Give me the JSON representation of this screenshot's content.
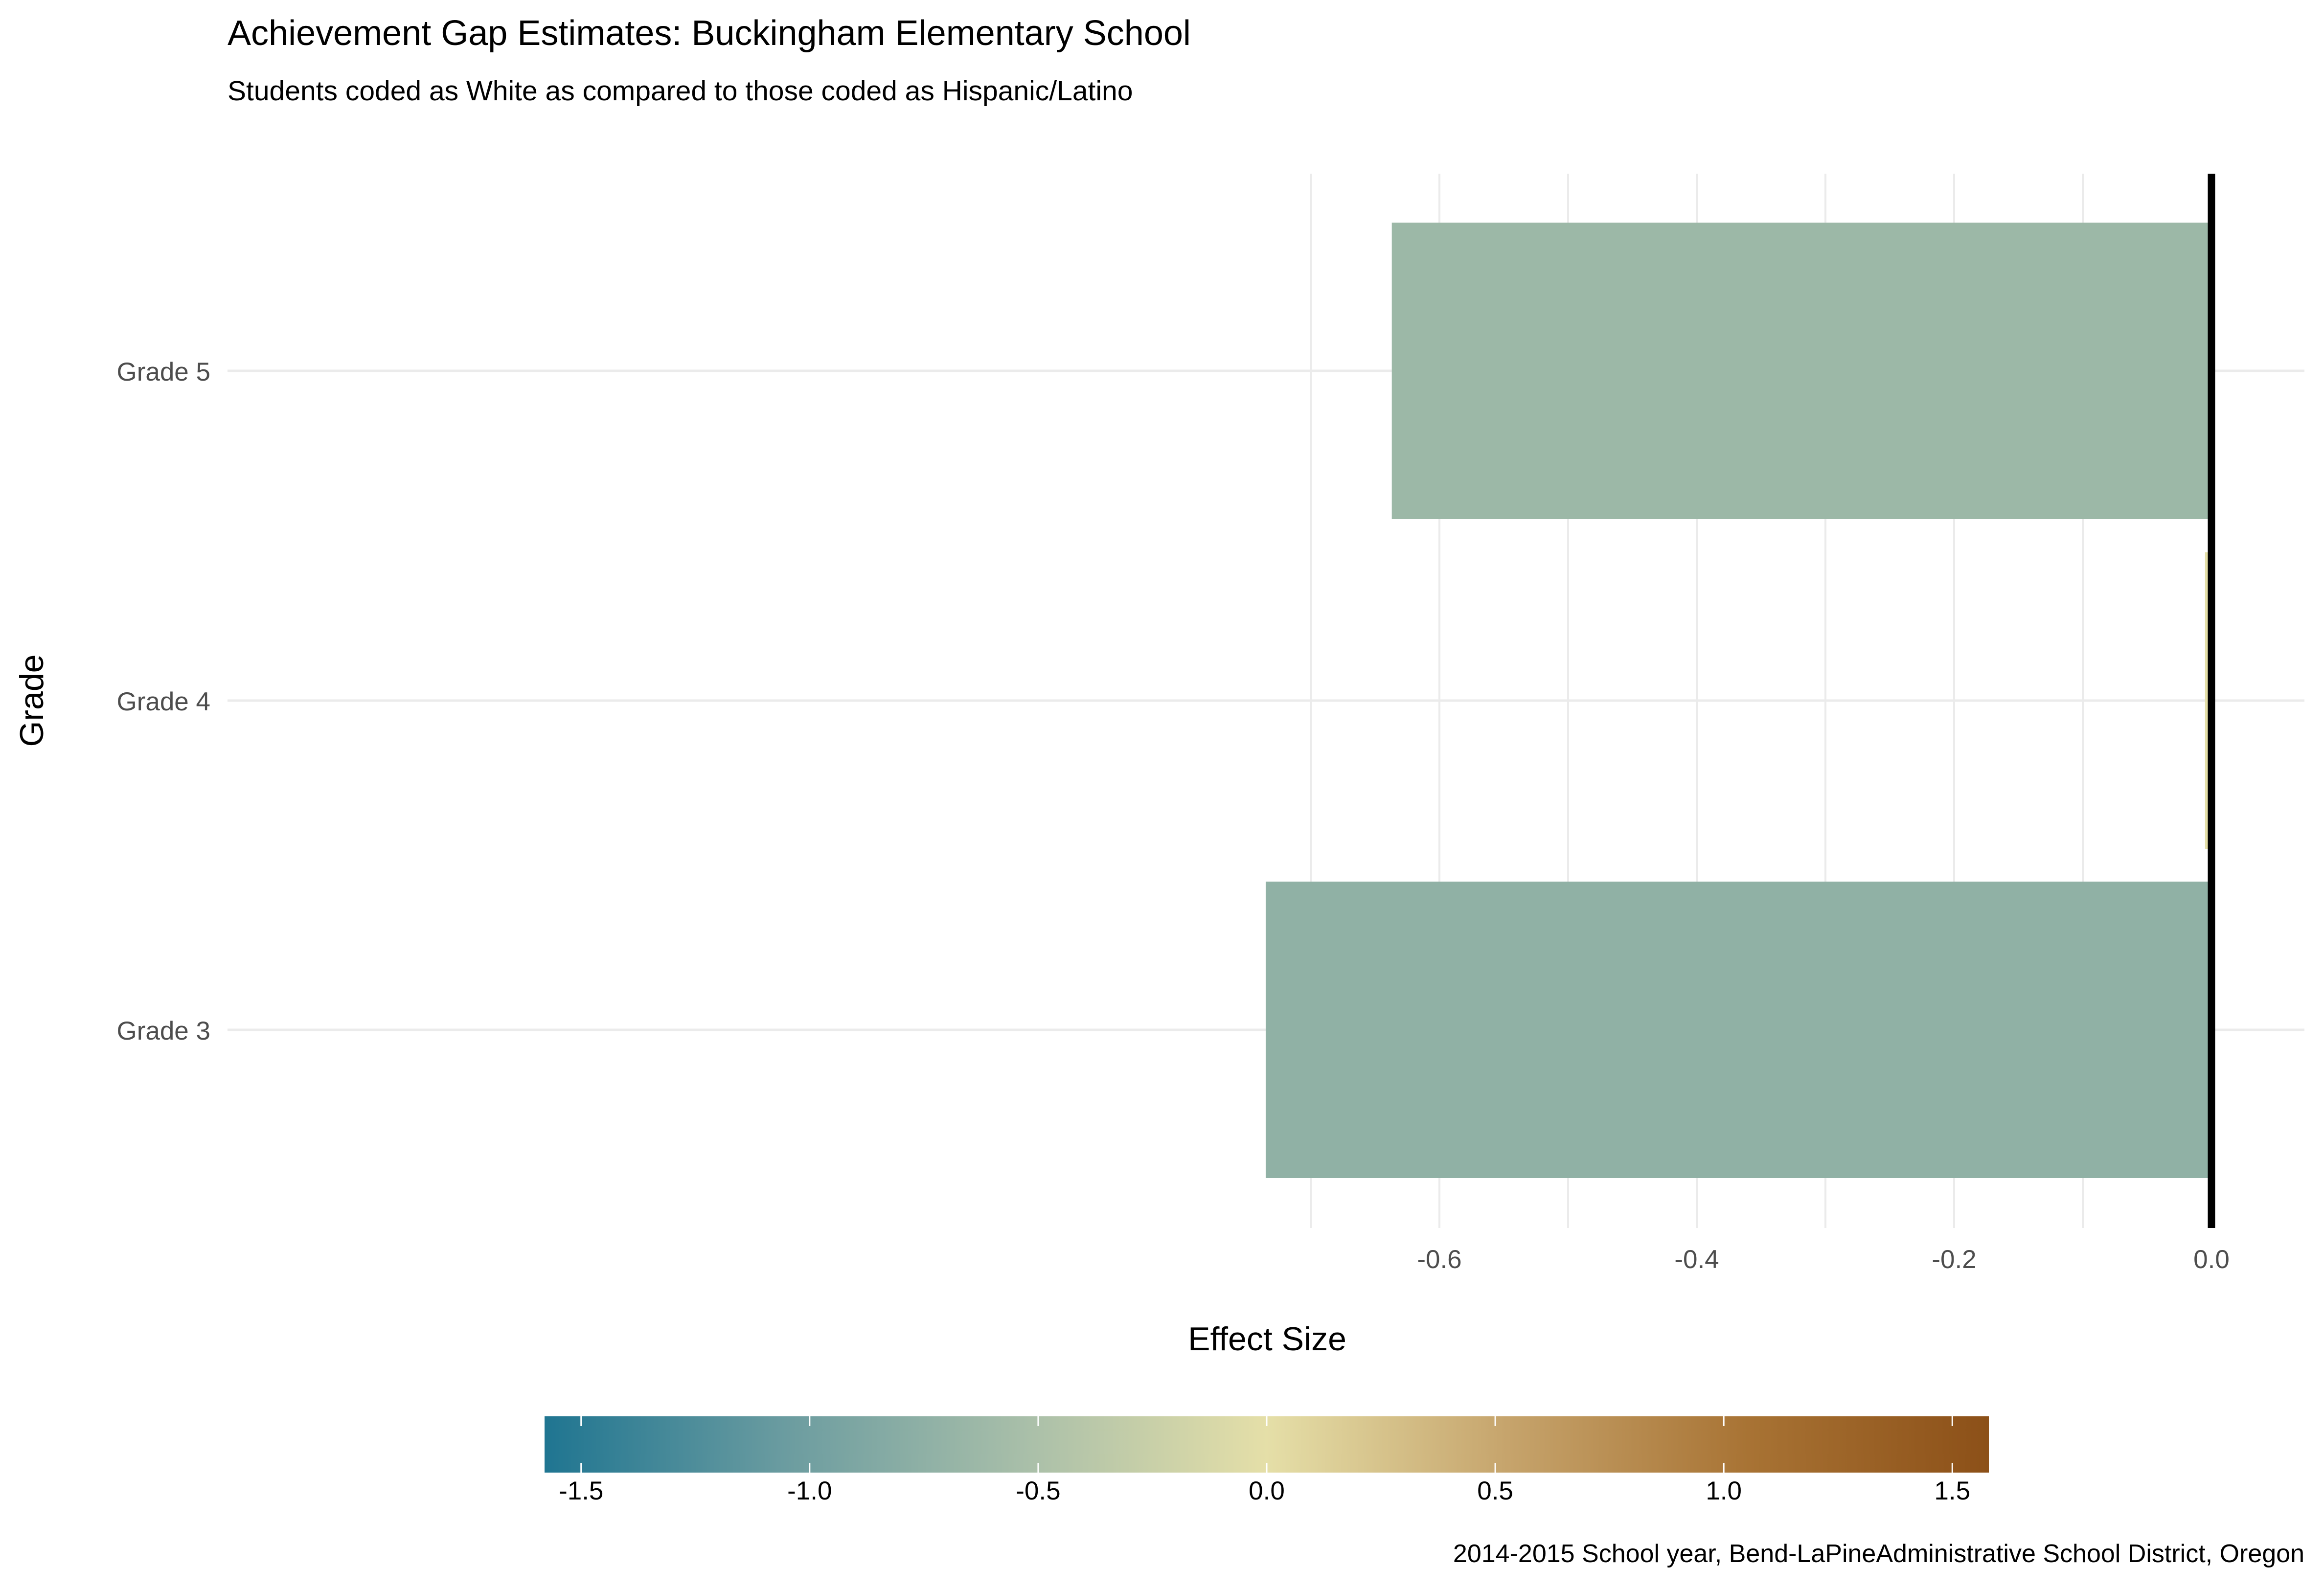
{
  "chart_data": {
    "type": "bar",
    "orientation": "horizontal",
    "title": "Achievement Gap Estimates: Buckingham Elementary School",
    "subtitle": "Students coded as White as compared to those coded as Hispanic/Latino",
    "xlabel": "Effect Size",
    "ylabel": "Grade",
    "caption": "2014-2015 School year, Bend-LaPineAdministrative School District, Oregon",
    "categories": [
      "Grade 3",
      "Grade 4",
      "Grade 5"
    ],
    "values": [
      -0.735,
      -0.005,
      -0.637
    ],
    "xlim": [
      -0.76,
      0.072
    ],
    "xticks": [
      -0.6,
      -0.4,
      -0.2,
      0.0
    ],
    "xtick_labels": [
      "-0.6",
      "-0.4",
      "-0.2",
      "0.0"
    ],
    "reference_line": 0.0,
    "grid": true,
    "legend": {
      "type": "colorbar",
      "placement": "bottom",
      "range": [
        -1.58,
        1.58
      ],
      "ticks": [
        -1.5,
        -1.0,
        -0.5,
        0.0,
        0.5,
        1.0,
        1.5
      ],
      "tick_labels": [
        "-1.5",
        "-1.0",
        "-0.5",
        "0.0",
        "0.5",
        "1.0",
        "1.5"
      ],
      "colors": [
        "#1f7591",
        "#6b9ca0",
        "#a9bfa9",
        "#e5dfa8",
        "#c6a46c",
        "#a87334",
        "#8c5018"
      ]
    }
  }
}
